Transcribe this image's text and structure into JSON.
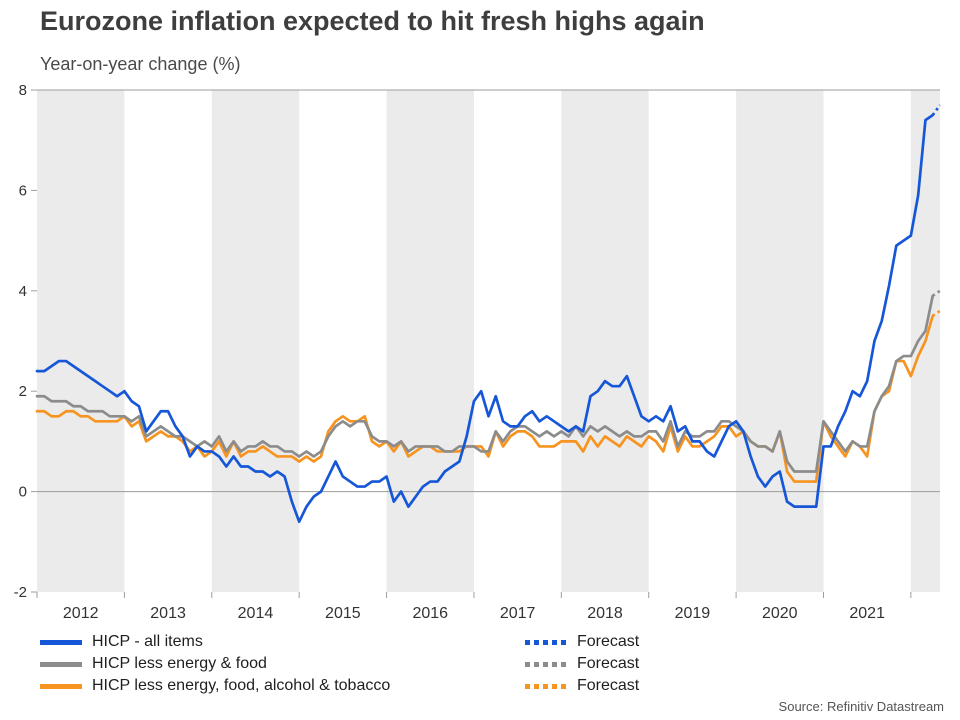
{
  "header": {
    "title": "Eurozone inflation expected to hit fresh highs again",
    "subtitle": "Year-on-year change (%)"
  },
  "legend": {
    "forecast_label": "Forecast"
  },
  "source": "Source: Refinitiv Datastream",
  "chart_data": {
    "type": "line",
    "title": "Eurozone inflation expected to hit fresh highs again",
    "subtitle": "Year-on-year change (%)",
    "x_unit": "month",
    "x_start_year": 2012,
    "x_months": 124,
    "x_tick_labels": [
      "2012",
      "2013",
      "2014",
      "2015",
      "2016",
      "2017",
      "2018",
      "2019",
      "2020",
      "2021"
    ],
    "ylim": [
      -2,
      8
    ],
    "yticks": [
      8,
      6,
      4,
      2,
      0,
      -2
    ],
    "shaded_years": [
      2012,
      2014,
      2016,
      2018,
      2020,
      2022
    ],
    "grid": "zero-line-only",
    "legend_position": "bottom",
    "colors": {
      "stripe": "#ebebeb",
      "axis": "#9e9e9e",
      "zero_line": "#9b9b9b"
    },
    "series": [
      {
        "name": "HICP - all items",
        "color": "#1657d8",
        "values": [
          2.4,
          2.4,
          2.5,
          2.6,
          2.6,
          2.5,
          2.4,
          2.3,
          2.2,
          2.1,
          2.0,
          1.9,
          2.0,
          1.8,
          1.7,
          1.2,
          1.4,
          1.6,
          1.6,
          1.3,
          1.1,
          0.7,
          0.9,
          0.8,
          0.8,
          0.7,
          0.5,
          0.7,
          0.5,
          0.5,
          0.4,
          0.4,
          0.3,
          0.4,
          0.3,
          -0.2,
          -0.6,
          -0.3,
          -0.1,
          0.0,
          0.3,
          0.6,
          0.3,
          0.2,
          0.1,
          0.1,
          0.2,
          0.2,
          0.3,
          -0.2,
          0.0,
          -0.3,
          -0.1,
          0.1,
          0.2,
          0.2,
          0.4,
          0.5,
          0.6,
          1.1,
          1.8,
          2.0,
          1.5,
          1.9,
          1.4,
          1.3,
          1.3,
          1.5,
          1.6,
          1.4,
          1.5,
          1.4,
          1.3,
          1.2,
          1.3,
          1.2,
          1.9,
          2.0,
          2.2,
          2.1,
          2.1,
          2.3,
          1.9,
          1.5,
          1.4,
          1.5,
          1.4,
          1.7,
          1.2,
          1.3,
          1.0,
          1.0,
          0.8,
          0.7,
          1.0,
          1.3,
          1.4,
          1.2,
          0.7,
          0.3,
          0.1,
          0.3,
          0.4,
          -0.2,
          -0.3,
          -0.3,
          -0.3,
          -0.3,
          0.9,
          0.9,
          1.3,
          1.6,
          2.0,
          1.9,
          2.2,
          3.0,
          3.4,
          4.1,
          4.9,
          5.0,
          5.1,
          5.9,
          7.4,
          7.5
        ],
        "forecast": [
          7.5,
          7.7
        ]
      },
      {
        "name": "HICP less energy & food",
        "color": "#8c8c8c",
        "values": [
          1.9,
          1.9,
          1.8,
          1.8,
          1.8,
          1.7,
          1.7,
          1.6,
          1.6,
          1.6,
          1.5,
          1.5,
          1.5,
          1.4,
          1.5,
          1.1,
          1.2,
          1.3,
          1.2,
          1.1,
          1.1,
          1.0,
          0.9,
          1.0,
          0.9,
          1.1,
          0.8,
          1.0,
          0.8,
          0.9,
          0.9,
          1.0,
          0.9,
          0.9,
          0.8,
          0.8,
          0.7,
          0.8,
          0.7,
          0.8,
          1.1,
          1.3,
          1.4,
          1.3,
          1.4,
          1.4,
          1.1,
          1.0,
          1.0,
          0.9,
          1.0,
          0.8,
          0.9,
          0.9,
          0.9,
          0.9,
          0.8,
          0.8,
          0.9,
          0.9,
          0.9,
          0.8,
          0.8,
          1.2,
          1.0,
          1.2,
          1.3,
          1.3,
          1.2,
          1.1,
          1.2,
          1.1,
          1.2,
          1.1,
          1.3,
          1.1,
          1.3,
          1.2,
          1.3,
          1.2,
          1.1,
          1.2,
          1.1,
          1.1,
          1.2,
          1.2,
          1.0,
          1.4,
          0.9,
          1.2,
          1.1,
          1.1,
          1.2,
          1.2,
          1.4,
          1.4,
          1.3,
          1.2,
          1.0,
          0.9,
          0.9,
          0.8,
          1.2,
          0.6,
          0.4,
          0.4,
          0.4,
          0.4,
          1.4,
          1.2,
          1.0,
          0.8,
          1.0,
          0.9,
          0.9,
          1.6,
          1.9,
          2.1,
          2.6,
          2.7,
          2.7,
          3.0,
          3.2,
          3.9
        ],
        "forecast": [
          3.9,
          4.0
        ]
      },
      {
        "name": "HICP less energy, food, alcohol & tobacco",
        "color": "#f79420",
        "values": [
          1.6,
          1.6,
          1.5,
          1.5,
          1.6,
          1.6,
          1.5,
          1.5,
          1.4,
          1.4,
          1.4,
          1.4,
          1.5,
          1.3,
          1.4,
          1.0,
          1.1,
          1.2,
          1.1,
          1.1,
          1.0,
          0.8,
          0.9,
          0.7,
          0.8,
          1.0,
          0.7,
          1.0,
          0.7,
          0.8,
          0.8,
          0.9,
          0.8,
          0.7,
          0.7,
          0.7,
          0.6,
          0.7,
          0.6,
          0.7,
          1.2,
          1.4,
          1.5,
          1.4,
          1.4,
          1.5,
          1.0,
          0.9,
          1.0,
          0.8,
          1.0,
          0.7,
          0.8,
          0.9,
          0.9,
          0.8,
          0.8,
          0.8,
          0.8,
          0.9,
          0.9,
          0.9,
          0.7,
          1.2,
          0.9,
          1.1,
          1.2,
          1.2,
          1.1,
          0.9,
          0.9,
          0.9,
          1.0,
          1.0,
          1.0,
          0.8,
          1.1,
          0.9,
          1.1,
          1.0,
          0.9,
          1.1,
          1.0,
          0.9,
          1.1,
          1.0,
          0.8,
          1.3,
          0.8,
          1.1,
          0.9,
          0.9,
          1.0,
          1.1,
          1.3,
          1.3,
          1.1,
          1.2,
          1.0,
          0.9,
          0.9,
          0.8,
          1.2,
          0.4,
          0.2,
          0.2,
          0.2,
          0.2,
          1.4,
          1.1,
          0.9,
          0.7,
          1.0,
          0.9,
          0.7,
          1.6,
          1.9,
          2.0,
          2.6,
          2.6,
          2.3,
          2.7,
          3.0,
          3.5
        ],
        "forecast": [
          3.5,
          3.6
        ]
      }
    ],
    "forecast_style": "dotted",
    "source": "Source: Refinitiv Datastream"
  }
}
